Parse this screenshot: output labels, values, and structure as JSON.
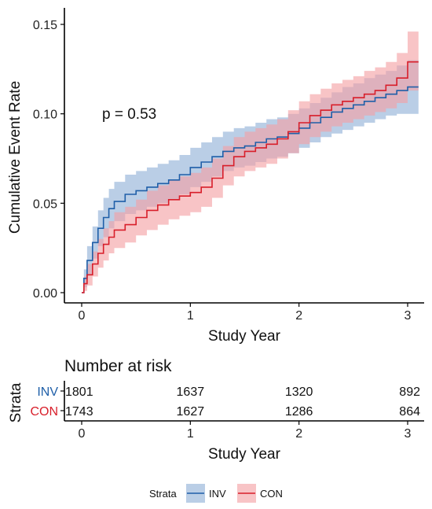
{
  "chart_data": {
    "type": "line",
    "subtype": "kaplan-meier-cumulative-incidence",
    "xlabel": "Study Year",
    "ylabel": "Cumulative Event Rate",
    "xlim": [
      0,
      3.1
    ],
    "ylim": [
      0,
      0.15
    ],
    "xticks": [
      0,
      1,
      2,
      3
    ],
    "yticks": [
      0.0,
      0.05,
      0.1,
      0.15
    ],
    "ytick_labels": [
      "0.00",
      "0.05",
      "0.10",
      "0.15"
    ],
    "grid": false,
    "annotation": "p = 0.53",
    "series": [
      {
        "name": "INV",
        "color": "#1f5fa8",
        "band_color": "#8fb0d6",
        "x": [
          0,
          0.02,
          0.05,
          0.1,
          0.15,
          0.2,
          0.25,
          0.3,
          0.4,
          0.5,
          0.6,
          0.7,
          0.8,
          0.9,
          1.0,
          1.1,
          1.2,
          1.3,
          1.4,
          1.5,
          1.6,
          1.7,
          1.8,
          1.9,
          2.0,
          2.1,
          2.2,
          2.3,
          2.4,
          2.5,
          2.6,
          2.7,
          2.8,
          2.9,
          3.0,
          3.1
        ],
        "y": [
          0,
          0.008,
          0.018,
          0.028,
          0.036,
          0.042,
          0.047,
          0.051,
          0.055,
          0.057,
          0.059,
          0.061,
          0.063,
          0.066,
          0.07,
          0.073,
          0.076,
          0.079,
          0.081,
          0.082,
          0.084,
          0.086,
          0.087,
          0.089,
          0.092,
          0.095,
          0.098,
          0.101,
          0.103,
          0.105,
          0.107,
          0.109,
          0.111,
          0.113,
          0.115,
          0.115
        ],
        "lower": [
          0,
          0.003,
          0.01,
          0.019,
          0.026,
          0.031,
          0.036,
          0.04,
          0.044,
          0.046,
          0.048,
          0.05,
          0.052,
          0.055,
          0.059,
          0.062,
          0.065,
          0.068,
          0.07,
          0.071,
          0.073,
          0.075,
          0.076,
          0.078,
          0.081,
          0.084,
          0.087,
          0.089,
          0.091,
          0.093,
          0.095,
          0.097,
          0.099,
          0.1,
          0.1,
          0.1
        ],
        "upper": [
          0,
          0.013,
          0.026,
          0.037,
          0.046,
          0.053,
          0.058,
          0.062,
          0.066,
          0.068,
          0.07,
          0.072,
          0.074,
          0.077,
          0.081,
          0.084,
          0.087,
          0.09,
          0.092,
          0.093,
          0.095,
          0.097,
          0.098,
          0.1,
          0.103,
          0.106,
          0.109,
          0.112,
          0.115,
          0.117,
          0.12,
          0.122,
          0.124,
          0.127,
          0.13,
          0.13
        ]
      },
      {
        "name": "CON",
        "color": "#d81e2a",
        "band_color": "#f4a0a3",
        "x": [
          0,
          0.02,
          0.05,
          0.1,
          0.15,
          0.2,
          0.25,
          0.3,
          0.4,
          0.5,
          0.6,
          0.7,
          0.8,
          0.9,
          1.0,
          1.1,
          1.2,
          1.3,
          1.4,
          1.5,
          1.6,
          1.7,
          1.8,
          1.9,
          2.0,
          2.1,
          2.2,
          2.3,
          2.4,
          2.5,
          2.6,
          2.7,
          2.8,
          2.9,
          3.0,
          3.1
        ],
        "y": [
          0,
          0.005,
          0.01,
          0.016,
          0.022,
          0.027,
          0.031,
          0.035,
          0.038,
          0.042,
          0.046,
          0.049,
          0.052,
          0.054,
          0.056,
          0.059,
          0.064,
          0.071,
          0.076,
          0.079,
          0.081,
          0.083,
          0.086,
          0.09,
          0.095,
          0.099,
          0.102,
          0.105,
          0.107,
          0.109,
          0.111,
          0.113,
          0.116,
          0.12,
          0.129,
          0.129
        ],
        "lower": [
          0,
          0.001,
          0.004,
          0.009,
          0.014,
          0.018,
          0.022,
          0.025,
          0.028,
          0.032,
          0.035,
          0.038,
          0.041,
          0.043,
          0.045,
          0.048,
          0.053,
          0.06,
          0.065,
          0.068,
          0.07,
          0.072,
          0.075,
          0.078,
          0.083,
          0.087,
          0.09,
          0.093,
          0.095,
          0.097,
          0.099,
          0.101,
          0.103,
          0.106,
          0.113,
          0.113
        ],
        "upper": [
          0,
          0.009,
          0.016,
          0.023,
          0.03,
          0.036,
          0.04,
          0.045,
          0.048,
          0.052,
          0.057,
          0.06,
          0.063,
          0.065,
          0.067,
          0.07,
          0.075,
          0.082,
          0.087,
          0.09,
          0.092,
          0.094,
          0.097,
          0.102,
          0.107,
          0.111,
          0.114,
          0.117,
          0.119,
          0.121,
          0.124,
          0.126,
          0.129,
          0.134,
          0.146,
          0.146
        ]
      }
    ],
    "risk_table": {
      "title": "Number at risk",
      "row_axis_label": "Strata",
      "xlabel": "Study Year",
      "xticks": [
        0,
        1,
        2,
        3
      ],
      "rows": [
        {
          "name": "INV",
          "color": "#1f5fa8",
          "values": [
            "1801",
            "1637",
            "1320",
            "892"
          ]
        },
        {
          "name": "CON",
          "color": "#d81e2a",
          "values": [
            "1743",
            "1627",
            "1286",
            "864"
          ]
        }
      ]
    },
    "legend": {
      "title": "Strata",
      "position": "bottom",
      "entries": [
        "INV",
        "CON"
      ]
    }
  }
}
